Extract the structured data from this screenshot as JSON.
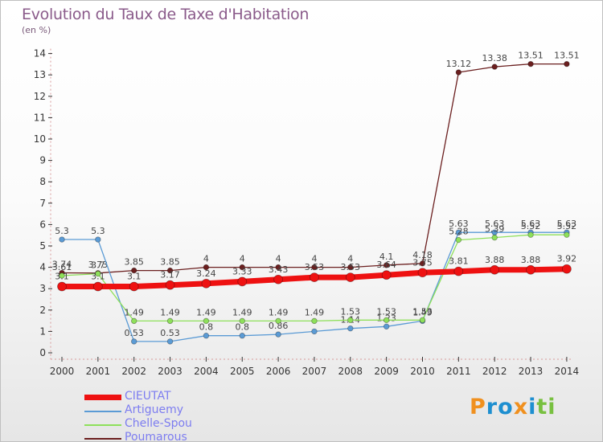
{
  "title": "Evolution du Taux de Taxe d'Habitation",
  "subtitle": "(en %)",
  "brand": {
    "text": "Proxiti",
    "letters": [
      "P",
      "r",
      "o",
      "x",
      "i",
      "t",
      "i"
    ],
    "colors": [
      "#f0901e",
      "#1e8fd0",
      "#1e8fd0",
      "#f0901e",
      "#1e8fd0",
      "#78c040",
      "#78c040"
    ]
  },
  "chart_data": {
    "type": "line",
    "x": [
      "2000",
      "2001",
      "2002",
      "2003",
      "2004",
      "2005",
      "2006",
      "2007",
      "2008",
      "2009",
      "2010",
      "2011",
      "2012",
      "2013",
      "2014"
    ],
    "yticks": [
      "0",
      "1",
      "2",
      "3",
      "4",
      "5",
      "6",
      "7",
      "8",
      "9",
      "10",
      "11",
      "12",
      "13",
      "14"
    ],
    "ylim": [
      0,
      14
    ],
    "grid": false,
    "legend_position": "bottom-left",
    "series": [
      {
        "name": "Poumarous",
        "color": "#6b1f1f",
        "width": 1.3,
        "values": [
          3.74,
          3.73,
          3.85,
          3.85,
          4,
          4,
          4,
          4,
          4,
          4.1,
          4.18,
          13.12,
          13.38,
          13.51,
          13.51
        ],
        "labels": [
          "3.74",
          "3.73",
          "3.85",
          "3.85",
          "4",
          "4",
          "4",
          "4",
          "4",
          "4.1",
          "4.18",
          "13.12",
          "13.38",
          "13.51",
          "13.51"
        ]
      },
      {
        "name": "Artiguemy",
        "color": "#5b9bd5",
        "width": 1.3,
        "values": [
          5.3,
          5.3,
          0.53,
          0.53,
          0.8,
          0.8,
          0.86,
          1,
          1.14,
          1.23,
          1.49,
          5.63,
          5.63,
          5.63,
          5.63
        ],
        "labels": [
          "5.3",
          "5.3",
          "0.53",
          "0.53",
          "0.8",
          "0.8",
          "0.86",
          "",
          "1.14",
          "1.23",
          "1.49",
          "5.63",
          "5.63",
          "5.63",
          "5.63"
        ]
      },
      {
        "name": "Chelle-Spou",
        "color": "#8ee05a",
        "width": 1.3,
        "values": [
          3.61,
          3.7,
          1.49,
          1.49,
          1.49,
          1.49,
          1.49,
          1.49,
          1.53,
          1.53,
          1.53,
          5.28,
          5.39,
          5.52,
          5.52
        ],
        "labels": [
          "3.61",
          "3.7",
          "1.49",
          "1.49",
          "1.49",
          "1.49",
          "1.49",
          "1.49",
          "1.53",
          "1.53",
          "1.53",
          "5.28",
          "5.39",
          "5.52",
          "5.52"
        ]
      },
      {
        "name": "CIEUTAT",
        "color": "#ee1111",
        "width": 7,
        "values": [
          3.1,
          3.1,
          3.1,
          3.17,
          3.24,
          3.33,
          3.43,
          3.53,
          3.53,
          3.64,
          3.75,
          3.81,
          3.88,
          3.88,
          3.92
        ],
        "labels": [
          "3.1",
          "3.1",
          "3.1",
          "3.17",
          "3.24",
          "3.33",
          "3.43",
          "3.53",
          "3.53",
          "3.64",
          "3.75",
          "3.81",
          "3.88",
          "3.88",
          "3.92"
        ]
      }
    ],
    "legend": [
      "CIEUTAT",
      "Artiguemy",
      "Chelle-Spou",
      "Poumarous"
    ]
  }
}
